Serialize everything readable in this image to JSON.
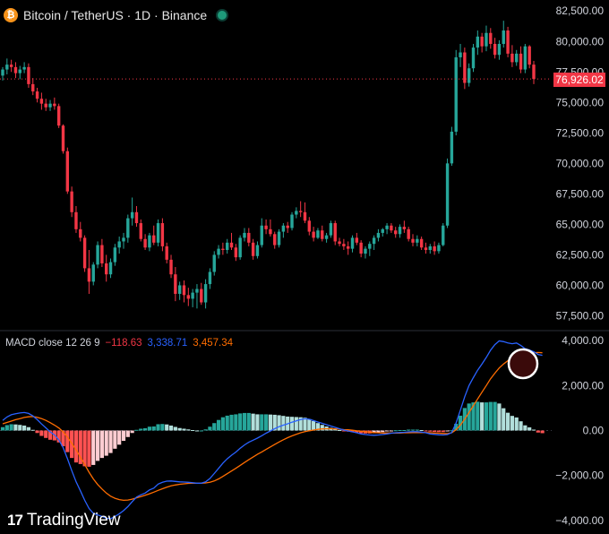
{
  "header": {
    "coin_symbol": "₿",
    "title": "Bitcoin / TetherUS · 1D · Binance"
  },
  "price_axis": {
    "ticks": [
      "82,500.00",
      "80,000.00",
      "77,500.00",
      "75,000.00",
      "72,500.00",
      "70,000.00",
      "67,500.00",
      "65,000.00",
      "62,500.00",
      "60,000.00",
      "57,500.00"
    ],
    "current_price_label": "76,926.02"
  },
  "macd": {
    "label": "MACD close 12 26 9",
    "histogram_value": "−118.63",
    "macd_value": "3,338.71",
    "signal_value": "3,457.34",
    "axis_ticks": [
      "4,000.00",
      "2,000.00",
      "0.00",
      "−2,000.00",
      "−4,000.00"
    ]
  },
  "branding": {
    "logo_mark": "17",
    "name": "TradingView"
  },
  "colors": {
    "up": "#26a69a",
    "down": "#f23645",
    "macd_line": "#2962ff",
    "signal_line": "#ff6d00",
    "hist_up_strong": "#26a69a",
    "hist_up_weak": "#b2dfdb",
    "hist_down_strong": "#ff5252",
    "hist_down_weak": "#ffcdd2",
    "highlight_circle": "#ffffff"
  },
  "chart_data": [
    {
      "type": "candlestick",
      "title": "Bitcoin / TetherUS · 1D · Binance",
      "ylim": [
        56800,
        83400
      ],
      "ticks": [
        57500,
        60000,
        62500,
        65000,
        67500,
        70000,
        72500,
        75000,
        77500,
        80000,
        82500
      ],
      "current_price": 76926.02,
      "candles": [
        [
          77200,
          77900,
          76800,
          77700
        ],
        [
          77700,
          78600,
          77300,
          78100
        ],
        [
          78100,
          78500,
          77500,
          77900
        ],
        [
          77900,
          78300,
          77000,
          77400
        ],
        [
          77400,
          78000,
          76900,
          77700
        ],
        [
          77700,
          78300,
          77400,
          77900
        ],
        [
          77900,
          78200,
          76200,
          76500
        ],
        [
          76500,
          77000,
          75600,
          75900
        ],
        [
          75900,
          76200,
          75000,
          75300
        ],
        [
          75300,
          75800,
          74400,
          74900
        ],
        [
          74900,
          75300,
          74300,
          74600
        ],
        [
          74600,
          75200,
          74300,
          74900
        ],
        [
          74900,
          75400,
          74400,
          74700
        ],
        [
          74700,
          74900,
          72900,
          73100
        ],
        [
          73100,
          73200,
          70800,
          71000
        ],
        [
          71000,
          71300,
          67500,
          67700
        ],
        [
          67700,
          68100,
          65600,
          66000
        ],
        [
          66000,
          66500,
          64300,
          64600
        ],
        [
          64600,
          65200,
          63600,
          63900
        ],
        [
          63900,
          64100,
          61100,
          61400
        ],
        [
          61400,
          62900,
          59300,
          60300
        ],
        [
          60300,
          61900,
          60000,
          61700
        ],
        [
          61700,
          63600,
          61400,
          63300
        ],
        [
          63300,
          63800,
          61500,
          61800
        ],
        [
          61800,
          62500,
          60300,
          60900
        ],
        [
          60900,
          62200,
          60600,
          61900
        ],
        [
          61900,
          63400,
          61600,
          63100
        ],
        [
          63100,
          64000,
          62600,
          63600
        ],
        [
          63600,
          64300,
          63000,
          63900
        ],
        [
          63900,
          65800,
          63500,
          65500
        ],
        [
          65500,
          67200,
          64900,
          66000
        ],
        [
          66000,
          66500,
          64800,
          65100
        ],
        [
          65100,
          65400,
          63600,
          63800
        ],
        [
          63800,
          64200,
          62900,
          63100
        ],
        [
          63100,
          64300,
          62800,
          64100
        ],
        [
          64100,
          64900,
          63300,
          63500
        ],
        [
          63500,
          65400,
          63200,
          65100
        ],
        [
          65100,
          65500,
          62800,
          63200
        ],
        [
          63200,
          63500,
          61800,
          62100
        ],
        [
          62100,
          62500,
          60600,
          60900
        ],
        [
          60900,
          61500,
          58700,
          59300
        ],
        [
          59300,
          60300,
          58800,
          60000
        ],
        [
          60000,
          60400,
          58600,
          59200
        ],
        [
          59200,
          59800,
          58300,
          58900
        ],
        [
          58900,
          59700,
          58200,
          59400
        ],
        [
          59400,
          60100,
          58100,
          59700
        ],
        [
          59700,
          60200,
          58400,
          58600
        ],
        [
          58600,
          60500,
          58100,
          60100
        ],
        [
          60100,
          61400,
          59700,
          61100
        ],
        [
          61100,
          62800,
          60800,
          62500
        ],
        [
          62500,
          63300,
          62200,
          63000
        ],
        [
          63000,
          63500,
          62500,
          62900
        ],
        [
          62900,
          63800,
          62600,
          63500
        ],
        [
          63500,
          64300,
          62900,
          63100
        ],
        [
          63100,
          63400,
          62000,
          62300
        ],
        [
          62300,
          64100,
          62100,
          63900
        ],
        [
          63900,
          64700,
          63600,
          64300
        ],
        [
          64300,
          64700,
          63200,
          63500
        ],
        [
          63500,
          63800,
          62100,
          62400
        ],
        [
          62400,
          63600,
          62200,
          63300
        ],
        [
          63300,
          65500,
          63100,
          64900
        ],
        [
          64900,
          65400,
          64200,
          64600
        ],
        [
          64600,
          65400,
          64000,
          64200
        ],
        [
          64200,
          64400,
          63000,
          63300
        ],
        [
          63300,
          64600,
          63100,
          64400
        ],
        [
          64400,
          65100,
          63900,
          64900
        ],
        [
          64900,
          65200,
          64300,
          64700
        ],
        [
          64700,
          66000,
          64500,
          65800
        ],
        [
          65800,
          66400,
          65500,
          66100
        ],
        [
          66100,
          66900,
          65600,
          66000
        ],
        [
          66000,
          66800,
          65100,
          65300
        ],
        [
          65300,
          65600,
          64100,
          64400
        ],
        [
          64400,
          64800,
          63600,
          63900
        ],
        [
          63900,
          64700,
          63800,
          64500
        ],
        [
          64500,
          64900,
          63600,
          63800
        ],
        [
          63800,
          64300,
          63500,
          64100
        ],
        [
          64100,
          65300,
          63900,
          65100
        ],
        [
          65100,
          65300,
          63300,
          63600
        ],
        [
          63600,
          63900,
          63200,
          63400
        ],
        [
          63400,
          63800,
          62900,
          63200
        ],
        [
          63200,
          63600,
          62500,
          63000
        ],
        [
          63000,
          64100,
          62700,
          63900
        ],
        [
          63900,
          64300,
          63300,
          63500
        ],
        [
          63500,
          63700,
          62300,
          62600
        ],
        [
          62600,
          63200,
          62200,
          63000
        ],
        [
          63000,
          63600,
          62400,
          63400
        ],
        [
          63400,
          64100,
          62900,
          63900
        ],
        [
          63900,
          64600,
          63600,
          64300
        ],
        [
          64300,
          64700,
          64000,
          64600
        ],
        [
          64600,
          65100,
          64200,
          64900
        ],
        [
          64900,
          65100,
          64300,
          64500
        ],
        [
          64500,
          64800,
          63900,
          64200
        ],
        [
          64200,
          65000,
          63900,
          64800
        ],
        [
          64800,
          65300,
          64300,
          64600
        ],
        [
          64600,
          64800,
          63600,
          63800
        ],
        [
          63800,
          64200,
          63200,
          63500
        ],
        [
          63500,
          64100,
          63200,
          63800
        ],
        [
          63800,
          64000,
          62900,
          63100
        ],
        [
          63100,
          63500,
          62600,
          62900
        ],
        [
          62900,
          63400,
          62600,
          63200
        ],
        [
          63200,
          63600,
          62500,
          62800
        ],
        [
          62800,
          63500,
          62600,
          63300
        ],
        [
          63300,
          65100,
          63200,
          64900
        ],
        [
          64900,
          70400,
          64700,
          70000
        ],
        [
          70000,
          73000,
          69800,
          72600
        ],
        [
          72600,
          79300,
          72300,
          78700
        ],
        [
          78700,
          79800,
          77900,
          79100
        ],
        [
          79100,
          79500,
          76100,
          76600
        ],
        [
          76600,
          78200,
          76300,
          77800
        ],
        [
          77800,
          79800,
          77500,
          79500
        ],
        [
          79500,
          80900,
          78900,
          80400
        ],
        [
          80400,
          80700,
          79100,
          79600
        ],
        [
          79600,
          81300,
          79200,
          80700
        ],
        [
          80700,
          81100,
          79400,
          79800
        ],
        [
          79800,
          80300,
          78600,
          78900
        ],
        [
          78900,
          80100,
          78500,
          79800
        ],
        [
          79800,
          81700,
          79500,
          80900
        ],
        [
          80900,
          81200,
          78700,
          79000
        ],
        [
          79000,
          79700,
          77900,
          78300
        ],
        [
          78300,
          79300,
          78000,
          79000
        ],
        [
          79000,
          79600,
          77400,
          77700
        ],
        [
          77700,
          79800,
          77400,
          79600
        ],
        [
          79600,
          79700,
          77800,
          78100
        ],
        [
          78100,
          78400,
          76500,
          76926
        ]
      ]
    },
    {
      "type": "macd",
      "title": "MACD close 12 26 9",
      "ylim": [
        -4400,
        4400
      ],
      "ticks": [
        -4000,
        -2000,
        0,
        2000,
        4000
      ],
      "macd": [
        450,
        600,
        700,
        750,
        780,
        800,
        760,
        650,
        480,
        290,
        120,
        -60,
        -200,
        -420,
        -760,
        -1250,
        -1780,
        -2280,
        -2680,
        -3100,
        -3460,
        -3680,
        -3750,
        -3820,
        -3900,
        -3920,
        -3820,
        -3700,
        -3560,
        -3380,
        -3160,
        -2960,
        -2860,
        -2780,
        -2640,
        -2560,
        -2380,
        -2300,
        -2250,
        -2240,
        -2260,
        -2280,
        -2290,
        -2300,
        -2320,
        -2340,
        -2340,
        -2280,
        -2130,
        -1910,
        -1680,
        -1450,
        -1260,
        -1100,
        -960,
        -790,
        -640,
        -520,
        -430,
        -340,
        -230,
        -120,
        -20,
        80,
        170,
        240,
        300,
        370,
        430,
        490,
        520,
        500,
        440,
        380,
        320,
        260,
        200,
        140,
        80,
        20,
        -20,
        -60,
        -100,
        -150,
        -180,
        -200,
        -210,
        -200,
        -180,
        -150,
        -120,
        -100,
        -90,
        -80,
        -60,
        -50,
        -50,
        -70,
        -100,
        -150,
        -170,
        -190,
        -200,
        -180,
        -90,
        330,
        900,
        1500,
        2000,
        2350,
        2680,
        2950,
        3250,
        3570,
        3820,
        3980,
        3950,
        3890,
        3860,
        3890,
        3780,
        3640,
        3580,
        3500,
        3380,
        3339
      ],
      "signal": [
        300,
        360,
        420,
        480,
        530,
        580,
        610,
        620,
        590,
        530,
        450,
        350,
        240,
        110,
        -60,
        -290,
        -560,
        -860,
        -1190,
        -1510,
        -1850,
        -2150,
        -2400,
        -2600,
        -2780,
        -2920,
        -3010,
        -3070,
        -3100,
        -3090,
        -3050,
        -2990,
        -2940,
        -2880,
        -2810,
        -2740,
        -2660,
        -2590,
        -2520,
        -2460,
        -2420,
        -2390,
        -2370,
        -2350,
        -2340,
        -2340,
        -2340,
        -2330,
        -2300,
        -2240,
        -2150,
        -2040,
        -1920,
        -1800,
        -1680,
        -1550,
        -1420,
        -1300,
        -1180,
        -1060,
        -950,
        -840,
        -730,
        -620,
        -510,
        -410,
        -320,
        -240,
        -170,
        -100,
        -50,
        -10,
        20,
        50,
        70,
        80,
        80,
        70,
        60,
        40,
        30,
        10,
        -10,
        -30,
        -50,
        -70,
        -90,
        -100,
        -110,
        -110,
        -110,
        -110,
        -110,
        -100,
        -100,
        -90,
        -90,
        -90,
        -90,
        -100,
        -110,
        -120,
        -130,
        -140,
        -100,
        30,
        240,
        500,
        800,
        1100,
        1400,
        1700,
        2000,
        2300,
        2550,
        2780,
        2960,
        3100,
        3210,
        3310,
        3370,
        3410,
        3440,
        3460,
        3470,
        3457
      ],
      "histogram_last": -118.63,
      "macd_last": 3338.71,
      "signal_last": 3457.34
    }
  ]
}
